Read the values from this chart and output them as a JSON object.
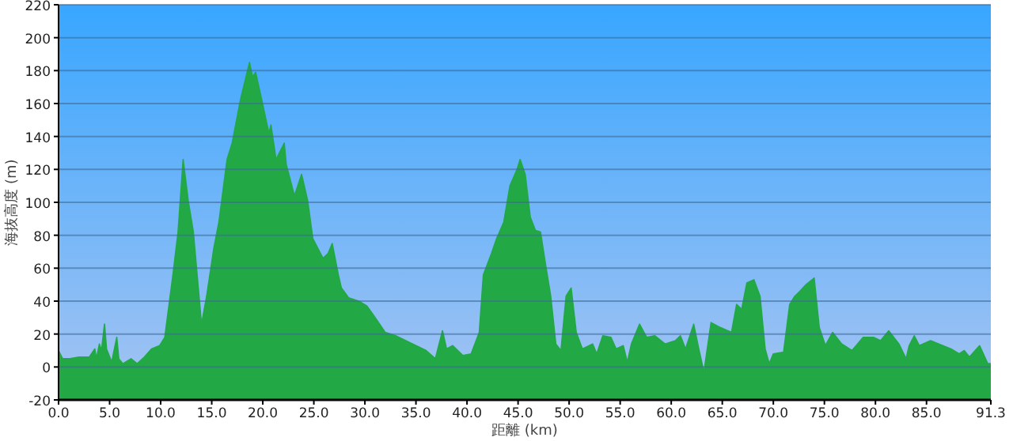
{
  "chart_data": {
    "type": "area",
    "xlabel": "距離 (km)",
    "ylabel": "海抜高度 (m)",
    "grid": "y",
    "xlim": [
      0,
      91.3
    ],
    "ylim": [
      -20,
      220
    ],
    "xticks": [
      {
        "value": 0,
        "label": "0.0"
      },
      {
        "value": 5,
        "label": "5.0"
      },
      {
        "value": 10,
        "label": "10.0"
      },
      {
        "value": 15,
        "label": "15.0"
      },
      {
        "value": 20,
        "label": "20.0"
      },
      {
        "value": 25,
        "label": "25.0"
      },
      {
        "value": 30,
        "label": "30.0"
      },
      {
        "value": 35,
        "label": "35.0"
      },
      {
        "value": 40,
        "label": "40.0"
      },
      {
        "value": 45,
        "label": "45.0"
      },
      {
        "value": 50,
        "label": "50.0"
      },
      {
        "value": 55,
        "label": "55.0"
      },
      {
        "value": 60,
        "label": "60.0"
      },
      {
        "value": 65,
        "label": "65.0"
      },
      {
        "value": 70,
        "label": "70.0"
      },
      {
        "value": 75,
        "label": "75.0"
      },
      {
        "value": 80,
        "label": "80.0"
      },
      {
        "value": 85,
        "label": "85.0"
      },
      {
        "value": 91.3,
        "label": "91.3"
      }
    ],
    "yticks": [
      -20,
      0,
      20,
      40,
      60,
      80,
      100,
      120,
      140,
      160,
      180,
      200,
      220
    ],
    "series": [
      {
        "color": "#22a844",
        "x": [
          0,
          0.4,
          1.0,
          2.0,
          3.0,
          3.55,
          3.7,
          4.0,
          4.2,
          4.5,
          4.7,
          5.2,
          5.7,
          5.9,
          6.3,
          7.1,
          7.7,
          8.4,
          9.1,
          9.9,
          10.4,
          11.2,
          11.7,
          12.2,
          12.7,
          13.2,
          14.0,
          14.5,
          15.2,
          15.7,
          16.5,
          17.0,
          17.8,
          18.7,
          19.0,
          19.3,
          19.8,
          20.6,
          20.8,
          21.3,
          22.1,
          22.3,
          23.1,
          23.8,
          24.4,
          24.9,
          25.9,
          26.4,
          26.8,
          27.4,
          27.7,
          28.4,
          29.4,
          30.2,
          31,
          32,
          33,
          34,
          35,
          36,
          36.9,
          37.6,
          38,
          38.6,
          39.6,
          40.4,
          41.2,
          41.6,
          42.4,
          42.9,
          43.6,
          44.2,
          44.9,
          45.2,
          45.7,
          46.2,
          46.7,
          47.2,
          47.7,
          48.2,
          48.7,
          49.2,
          49.7,
          50.2,
          50.7,
          51.3,
          52.3,
          52.7,
          53.3,
          54.1,
          54.6,
          55.3,
          55.7,
          56.1,
          56.9,
          57.6,
          58.4,
          59.4,
          60.4,
          60.9,
          61.4,
          62.2,
          62.7,
          63.2,
          63.9,
          64.8,
          65.9,
          66.4,
          66.9,
          67.4,
          68.1,
          68.7,
          69.2,
          69.6,
          70,
          71,
          71.6,
          72.1,
          72.6,
          73.2,
          74,
          74.5,
          75.1,
          75.8,
          76.7,
          77.7,
          78.8,
          79.8,
          80.5,
          81.3,
          82.3,
          83,
          83.3,
          83.8,
          84.3,
          85.4,
          86.2,
          87.4,
          88.2,
          88.7,
          89.2,
          90.2,
          91,
          91.3
        ],
        "values": [
          10,
          5,
          5,
          6,
          6,
          11,
          5,
          14,
          10,
          26,
          11,
          3,
          18,
          5,
          2,
          5,
          2,
          6,
          11,
          13,
          18,
          56,
          82,
          126,
          101,
          82,
          26,
          43,
          72,
          88,
          126,
          136,
          162,
          185,
          176,
          179,
          165,
          142,
          147,
          126,
          136,
          123,
          104,
          117,
          101,
          78,
          66,
          69,
          75,
          56,
          48,
          42,
          40,
          37,
          30,
          21,
          19,
          16,
          13,
          10,
          5,
          22,
          11,
          13,
          7,
          8,
          21,
          56,
          69,
          78,
          88,
          110,
          120,
          126,
          117,
          91,
          83,
          82,
          62,
          43,
          14,
          10,
          43,
          48,
          21,
          11,
          14,
          8,
          19,
          18,
          11,
          13,
          3,
          14,
          26,
          18,
          19,
          14,
          16,
          19,
          11,
          26,
          11,
          -3,
          27,
          24,
          21,
          38,
          35,
          51,
          53,
          43,
          11,
          2,
          8,
          9,
          38,
          43,
          46,
          50,
          54,
          24,
          13,
          21,
          14,
          10,
          18,
          18,
          16,
          22,
          14,
          5,
          13,
          19,
          13,
          16,
          14,
          11,
          8,
          10,
          6,
          13,
          2,
          2
        ]
      }
    ]
  }
}
